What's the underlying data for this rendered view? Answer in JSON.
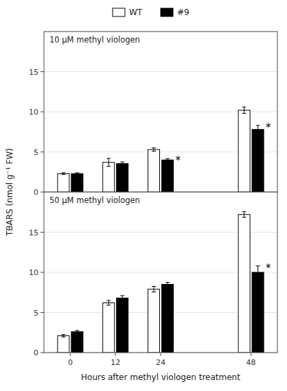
{
  "chart_data": [
    {
      "type": "bar",
      "title": "10 μM methyl viologen",
      "x": [
        0,
        12,
        24,
        48
      ],
      "xlim": [
        -7,
        55
      ],
      "ylim": [
        0,
        20
      ],
      "yticks": [
        0,
        5,
        10,
        15
      ],
      "y_label": "TBARS  (nmol g⁻¹ FW)",
      "tick_labels": "y",
      "legend": "top",
      "series": [
        {
          "name": "WT",
          "color": "white",
          "values": [
            2.3,
            3.7,
            5.3,
            10.2
          ],
          "errors": [
            0.1,
            0.5,
            0.2,
            0.4
          ]
        },
        {
          "name": "#9",
          "color": "black",
          "values": [
            2.3,
            3.55,
            4.0,
            7.8
          ],
          "errors": [
            0.1,
            0.2,
            0.15,
            0.5
          ]
        }
      ],
      "annotations": [
        {
          "text": "*",
          "x": 24
        },
        {
          "text": "*",
          "x": 48
        }
      ]
    },
    {
      "type": "bar",
      "title": "50 μM methyl viologen",
      "x": [
        0,
        12,
        24,
        48
      ],
      "xlim": [
        -7,
        55
      ],
      "xticks": [
        0,
        12,
        24,
        48
      ],
      "x_label": "Hours after methyl viologen treatment",
      "ylim": [
        0,
        20
      ],
      "yticks": [
        0,
        5,
        10,
        15
      ],
      "series": [
        {
          "name": "WT",
          "color": "white",
          "values": [
            2.1,
            6.2,
            7.9,
            17.2
          ],
          "errors": [
            0.15,
            0.3,
            0.35,
            0.35
          ]
        },
        {
          "name": "#9",
          "color": "black",
          "values": [
            2.6,
            6.8,
            8.5,
            10.0
          ],
          "errors": [
            0.15,
            0.3,
            0.25,
            0.8
          ]
        }
      ],
      "annotations": [
        {
          "text": "*",
          "x": 48
        }
      ]
    }
  ]
}
